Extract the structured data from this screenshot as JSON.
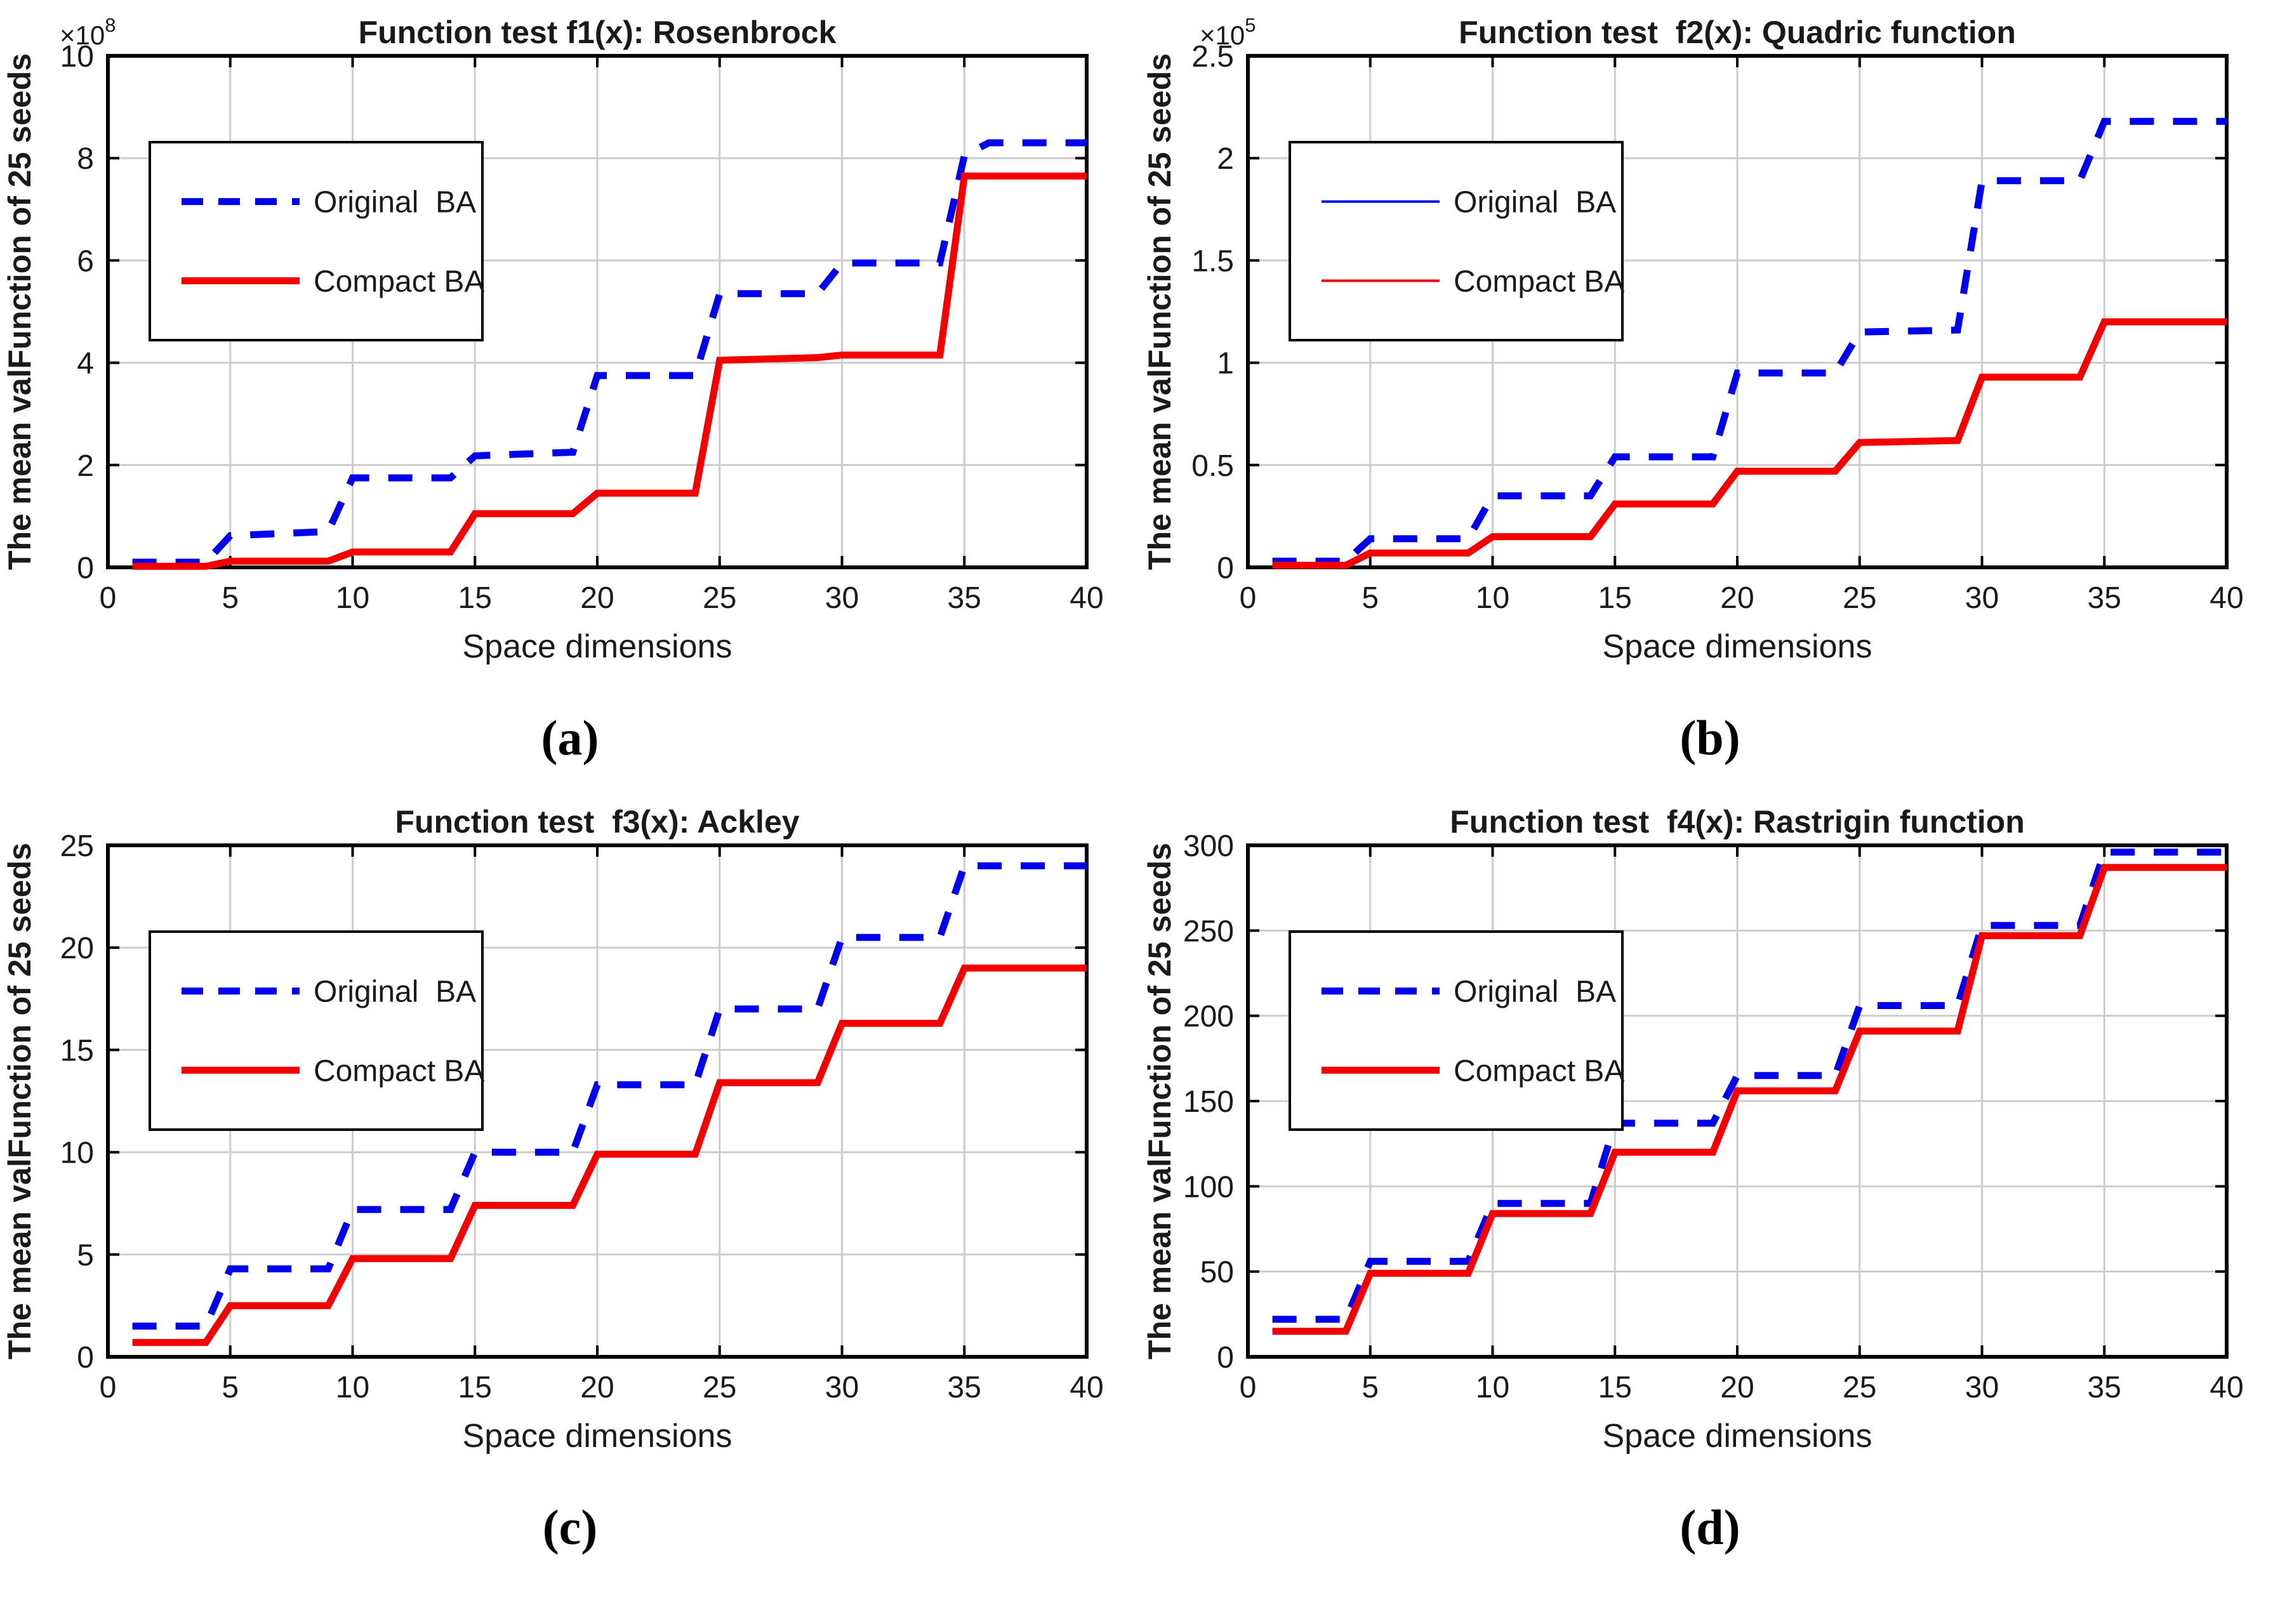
{
  "figure": {
    "background": "#ffffff",
    "style": {
      "axis_color": "#000000",
      "grid_color": "#cccccc",
      "original_ba_color": "#0000ee",
      "compact_ba_color": "#f50000",
      "text_color": "#1a1a1a"
    }
  },
  "chart_data": [
    {
      "id": "a",
      "caption": "(a)",
      "type": "line",
      "title": "Function test f1(x): Rosenbrock",
      "xlabel": "Space dimensions",
      "ylabel": "The mean valFunction of 25 seeds",
      "xlim": [
        0,
        40
      ],
      "ylim": [
        0,
        10
      ],
      "x_ticks": [
        0,
        5,
        10,
        15,
        20,
        25,
        30,
        35,
        40
      ],
      "x_tick_labels": [
        "0",
        "5",
        "10",
        "15",
        "20",
        "25",
        "30",
        "35",
        "40"
      ],
      "y_ticks": [
        0,
        2,
        4,
        6,
        8,
        10
      ],
      "y_tick_labels": [
        "0",
        "2",
        "4",
        "6",
        "8",
        "10"
      ],
      "y_exponent": "8",
      "grid": true,
      "legend_position": "top-left",
      "legend_thin_samples": false,
      "series": [
        {
          "name": "Original  BA",
          "color": "#0000ee",
          "dash": true,
          "x": [
            1,
            4,
            5,
            9,
            10,
            14,
            15,
            19,
            20,
            24,
            25,
            29,
            30,
            34,
            35,
            36,
            40
          ],
          "y": [
            0.1,
            0.1,
            0.62,
            0.7,
            1.75,
            1.75,
            2.18,
            2.25,
            3.75,
            3.75,
            5.35,
            5.35,
            5.95,
            5.95,
            8.05,
            8.3,
            8.3
          ]
        },
        {
          "name": "Compact BA",
          "color": "#f50000",
          "dash": false,
          "x": [
            1,
            4,
            5,
            9,
            10,
            14,
            15,
            19,
            20,
            24,
            25,
            29,
            30,
            34,
            35,
            40
          ],
          "y": [
            0.02,
            0.02,
            0.12,
            0.12,
            0.3,
            0.3,
            1.05,
            1.05,
            1.45,
            1.45,
            4.05,
            4.1,
            4.15,
            4.15,
            7.65,
            7.65
          ]
        }
      ]
    },
    {
      "id": "b",
      "caption": "(b)",
      "type": "line",
      "title": "Function test  f2(x): Quadric function",
      "xlabel": "Space dimensions",
      "ylabel": "The mean valFunction of 25 seeds",
      "xlim": [
        0,
        40
      ],
      "ylim": [
        0,
        2.5
      ],
      "x_ticks": [
        0,
        5,
        10,
        15,
        20,
        25,
        30,
        35,
        40
      ],
      "x_tick_labels": [
        "0",
        "5",
        "10",
        "15",
        "20",
        "25",
        "30",
        "35",
        "40"
      ],
      "y_ticks": [
        0,
        0.5,
        1,
        1.5,
        2,
        2.5
      ],
      "y_tick_labels": [
        "0",
        "0.5",
        "1",
        "1.5",
        "2",
        "2.5"
      ],
      "y_exponent": "5",
      "grid": true,
      "legend_position": "top-left",
      "legend_thin_samples": true,
      "series": [
        {
          "name": "Original  BA",
          "color": "#0000ee",
          "dash": true,
          "x": [
            1,
            4,
            5,
            9,
            10,
            14,
            15,
            19,
            20,
            24,
            25,
            29,
            30,
            34,
            35,
            40
          ],
          "y": [
            0.03,
            0.03,
            0.14,
            0.14,
            0.35,
            0.35,
            0.54,
            0.54,
            0.95,
            0.95,
            1.15,
            1.16,
            1.89,
            1.89,
            2.18,
            2.18
          ]
        },
        {
          "name": "Compact BA",
          "color": "#f50000",
          "dash": false,
          "x": [
            1,
            4,
            5,
            9,
            10,
            14,
            15,
            19,
            20,
            24,
            25,
            29,
            30,
            34,
            35,
            40
          ],
          "y": [
            0.01,
            0.01,
            0.07,
            0.07,
            0.15,
            0.15,
            0.31,
            0.31,
            0.47,
            0.47,
            0.61,
            0.62,
            0.93,
            0.93,
            1.2,
            1.2
          ]
        }
      ]
    },
    {
      "id": "c",
      "caption": "(c)",
      "type": "line",
      "title": "Function test  f3(x): Ackley",
      "xlabel": "Space dimensions",
      "ylabel": "The mean valFunction of 25 seeds",
      "xlim": [
        0,
        40
      ],
      "ylim": [
        0,
        25
      ],
      "x_ticks": [
        0,
        5,
        10,
        15,
        20,
        25,
        30,
        35,
        40
      ],
      "x_tick_labels": [
        "0",
        "5",
        "10",
        "15",
        "20",
        "25",
        "30",
        "35",
        "40"
      ],
      "y_ticks": [
        0,
        5,
        10,
        15,
        20,
        25
      ],
      "y_tick_labels": [
        "0",
        "5",
        "10",
        "15",
        "20",
        "25"
      ],
      "y_exponent": "",
      "grid": true,
      "legend_position": "top-left",
      "legend_thin_samples": false,
      "series": [
        {
          "name": "Original  BA",
          "color": "#0000ee",
          "dash": true,
          "x": [
            1,
            4,
            5,
            9,
            10,
            14,
            15,
            19,
            20,
            24,
            25,
            29,
            30,
            34,
            35,
            40
          ],
          "y": [
            1.5,
            1.5,
            4.3,
            4.3,
            7.2,
            7.2,
            10.0,
            10.0,
            13.3,
            13.3,
            17.0,
            17.0,
            20.5,
            20.5,
            24.0,
            24.0
          ]
        },
        {
          "name": "Compact BA",
          "color": "#f50000",
          "dash": false,
          "x": [
            1,
            4,
            5,
            9,
            10,
            14,
            15,
            19,
            20,
            24,
            25,
            29,
            30,
            34,
            35,
            40
          ],
          "y": [
            0.7,
            0.7,
            2.5,
            2.5,
            4.8,
            4.8,
            7.4,
            7.4,
            9.9,
            9.9,
            13.4,
            13.4,
            16.3,
            16.3,
            19.0,
            19.0
          ]
        }
      ]
    },
    {
      "id": "d",
      "caption": "(d)",
      "type": "line",
      "title": "Function test  f4(x): Rastrigin function",
      "xlabel": "Space dimensions",
      "ylabel": "The mean valFunction of 25 seeds",
      "xlim": [
        0,
        40
      ],
      "ylim": [
        0,
        300
      ],
      "x_ticks": [
        0,
        5,
        10,
        15,
        20,
        25,
        30,
        35,
        40
      ],
      "x_tick_labels": [
        "0",
        "5",
        "10",
        "15",
        "20",
        "25",
        "30",
        "35",
        "40"
      ],
      "y_ticks": [
        0,
        50,
        100,
        150,
        200,
        250,
        300
      ],
      "y_tick_labels": [
        "0",
        "50",
        "100",
        "150",
        "200",
        "250",
        "300"
      ],
      "y_exponent": "",
      "grid": true,
      "legend_position": "top-left",
      "legend_thin_samples": false,
      "series": [
        {
          "name": "Original  BA",
          "color": "#0000ee",
          "dash": true,
          "x": [
            1,
            4,
            5,
            9,
            10,
            14,
            15,
            19,
            20,
            24,
            25,
            29,
            30,
            34,
            35,
            40
          ],
          "y": [
            22,
            22,
            56,
            56,
            90,
            90,
            137,
            137,
            165,
            165,
            206,
            206,
            253,
            253,
            296,
            296
          ]
        },
        {
          "name": "Compact BA",
          "color": "#f50000",
          "dash": false,
          "x": [
            1,
            4,
            5,
            9,
            10,
            14,
            15,
            19,
            20,
            24,
            25,
            29,
            30,
            34,
            35,
            40
          ],
          "y": [
            15,
            15,
            49,
            49,
            84,
            84,
            120,
            120,
            156,
            156,
            191,
            191,
            247,
            247,
            287,
            287
          ]
        }
      ]
    }
  ]
}
